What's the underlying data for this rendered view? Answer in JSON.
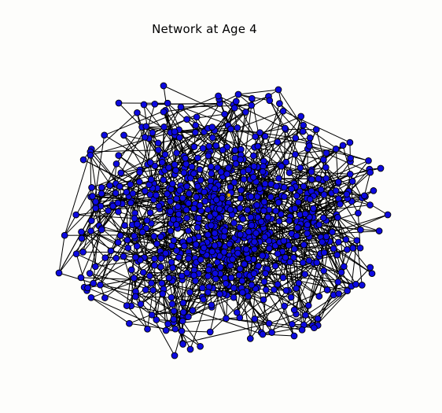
{
  "figure": {
    "title": "Network at Age 4"
  },
  "chart_data": {
    "type": "network",
    "title": "Network at Age 4",
    "colors": {
      "node_fill": "#0d0ae0",
      "node_stroke": "#000000",
      "edge": "#000000",
      "background": "#fdfdfb",
      "highlight": "#e8b000"
    }
  }
}
